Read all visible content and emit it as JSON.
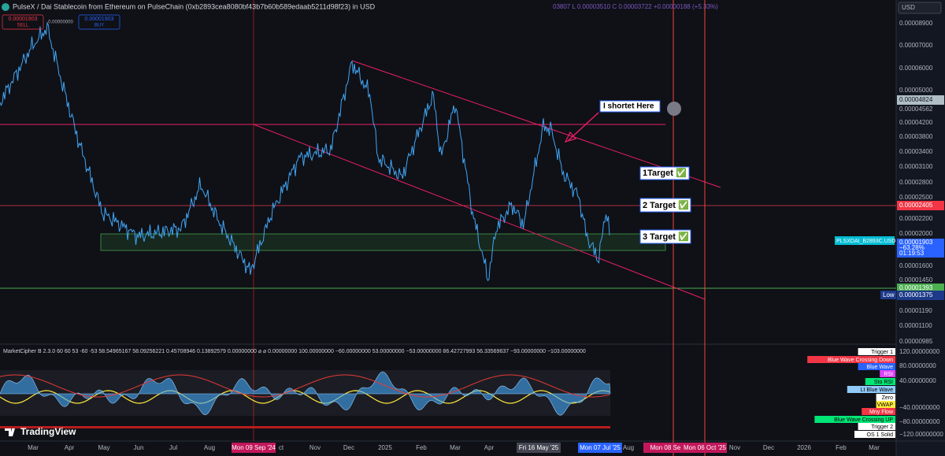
{
  "header": {
    "title": "PulseX / Dai Stablecoin from Ethereum on PulseChain (0xb2893cea8080bf43b7b60b589edaab5211d98f23) in USD",
    "ohlc": "03807 L 0.00003510 C 0.00003722 +0.00000188 (+5.33%)",
    "sell_price": "0.00001903",
    "sell": "SELL",
    "spread": "0.00000000",
    "buy_price": "0.00001903",
    "buy": "BUY",
    "currency": "USD"
  },
  "price_axis": {
    "labels": [
      "0.00008900",
      "0.00007000",
      "0.00006000",
      "0.00005000",
      "0.00004200",
      "0.00003800",
      "0.00003400",
      "0.00003100",
      "0.00002800",
      "0.00002500",
      "0.00002200",
      "0.00002000",
      "0.00001600",
      "0.00001450",
      "0.00001190",
      "0.00001100",
      "0.00000985"
    ],
    "level_pink": "0.00004824",
    "level_gray": "0.00004562",
    "level_red": "0.00002405",
    "last_price": "0.00001903",
    "change": "−63.28%",
    "countdown": "01:19:53",
    "level_green": "0.00001393",
    "low_label": "Low",
    "low": "0.00001375"
  },
  "time_axis": {
    "labels": [
      "Mar",
      "Apr",
      "May",
      "Jun",
      "Jul",
      "Aug",
      "ct",
      "Nov",
      "Dec",
      "2025",
      "Feb",
      "Mar",
      "Apr",
      "Aug",
      "Nov",
      "Dec",
      "2026",
      "Feb",
      "Mar"
    ],
    "highlights": [
      "Mon 09 Sep '24",
      "Fri 16 May '25",
      "Mon 07 Jul '25",
      "Mon 08 Se",
      "Mon 06 Oct '25"
    ]
  },
  "annotations": {
    "short": "I shortet  Here",
    "target1": "1Target ✅",
    "target2": "2 Target ✅",
    "target3": "3 Target ✅"
  },
  "symbol_label": "PLSXDAI_B2893C.USD",
  "indicator": {
    "header": "MarketCipher B 2.3.0 60 60 53 -60 -53  58.54965167  58.09256221  0.45708946  0.13892579  0.00000000  ⌀  ⌀  0.00000000  100.00000000  −60.00000000  53.00000000  −53.00000000  86.42727993  56.33569637  −93.00000000  −103.00000000",
    "axis": [
      "120.00000000",
      "80.00000000",
      "40.00000000",
      "−40.00000000",
      "−80.00000000",
      "−120.00000000"
    ],
    "legend": [
      "Trigger 1",
      "Blue Wave Crossing Down",
      "Blue Wave",
      "RSI",
      "Sto RSI",
      "Lt Blue Wave",
      "Zero",
      "VWAP",
      "Mny Flow",
      "Blue Wave Crossing UP",
      "Trigger 2",
      "OS 1 Solid"
    ]
  },
  "brand": "TradingView"
}
